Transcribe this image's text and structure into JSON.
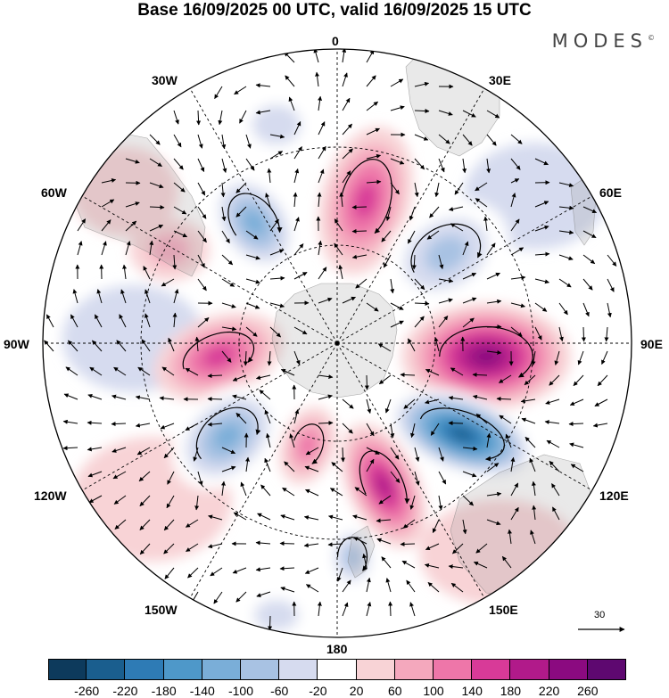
{
  "title": "Base 16/09/2025 00 UTC, valid 16/09/2025 15 UTC",
  "brand": "MODES",
  "brand_mark": "©",
  "meridian_labels": {
    "m0": "0",
    "m30e": "30E",
    "m60e": "60E",
    "m90e": "90E",
    "m120e": "120E",
    "m150e": "150E",
    "m180": "180",
    "m150w": "150W",
    "m120w": "120W",
    "m90w": "90W",
    "m60w": "60W",
    "m30w": "30W"
  },
  "colorbar": {
    "colors": [
      "#0d3a5c",
      "#1a5e8e",
      "#2e7bb5",
      "#4e98c9",
      "#7aaed8",
      "#a8c2e3",
      "#d6dbef",
      "#ffffff",
      "#f8d3d6",
      "#f4a8bd",
      "#ee76a9",
      "#d83a98",
      "#b11a8a",
      "#8b0a80",
      "#5e0870"
    ],
    "ticks": [
      "-260",
      "-220",
      "-180",
      "-140",
      "-100",
      "-60",
      "-20",
      "20",
      "60",
      "100",
      "140",
      "180",
      "220",
      "260"
    ]
  },
  "reference_vector": {
    "label": "30"
  },
  "field_centers": [
    {
      "name": "anomaly-max-90e",
      "value": 240
    },
    {
      "name": "anomaly-min-120e",
      "value": -250
    },
    {
      "name": "anomaly-max-160e",
      "value": 180
    },
    {
      "name": "anomaly-max-15e",
      "value": 160
    },
    {
      "name": "anomaly-min-45e",
      "value": -120
    },
    {
      "name": "anomaly-min-30w",
      "value": -80
    },
    {
      "name": "anomaly-min-60w",
      "value": -130
    },
    {
      "name": "anomaly-max-90w",
      "value": 140
    },
    {
      "name": "anomaly-min-120w",
      "value": -150
    },
    {
      "name": "anomaly-max-70w",
      "value": 80
    },
    {
      "name": "anomaly-min-170e",
      "value": -100
    },
    {
      "name": "anomaly-min-160w",
      "value": -70
    },
    {
      "name": "anomaly-max-150w",
      "value": 100
    }
  ]
}
